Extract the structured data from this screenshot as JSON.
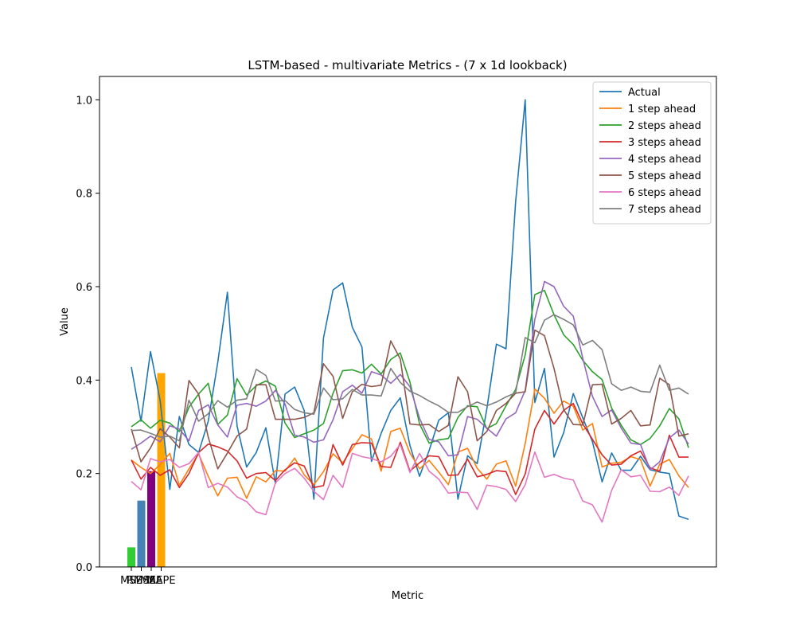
{
  "chart_data": {
    "type": "line",
    "title": "LSTM-based - multivariate Metrics - (7 x 1d lookback)",
    "xlabel": "Metric",
    "ylabel": "Value",
    "ylim": [
      0,
      1.05
    ],
    "y_ticks": [
      "0.0",
      "0.2",
      "0.4",
      "0.6",
      "0.8",
      "1.0"
    ],
    "legend_position": "upper right",
    "bars": {
      "categories": [
        "MSE",
        "RMSE",
        "MAE",
        "MAPE"
      ],
      "values": [
        0.042,
        0.142,
        0.205,
        0.415
      ],
      "colors": [
        "#32cd32",
        "#4682b4",
        "#800080",
        "#ffa500"
      ]
    },
    "series": [
      {
        "name": "Actual",
        "color": "#1f77b4",
        "values": [
          0.428,
          0.312,
          0.461,
          0.356,
          0.166,
          0.322,
          0.262,
          0.245,
          0.312,
          0.438,
          0.588,
          0.302,
          0.214,
          0.245,
          0.298,
          0.178,
          0.37,
          0.385,
          0.335,
          0.145,
          0.49,
          0.593,
          0.608,
          0.513,
          0.471,
          0.226,
          0.286,
          0.335,
          0.362,
          0.26,
          0.194,
          0.249,
          0.314,
          0.33,
          0.145,
          0.238,
          0.221,
          0.338,
          0.477,
          0.467,
          0.782,
          1.0,
          0.352,
          0.425,
          0.235,
          0.287,
          0.371,
          0.319,
          0.268,
          0.182,
          0.244,
          0.207,
          0.207,
          0.237,
          0.208,
          0.203,
          0.2,
          0.109,
          0.102
        ]
      },
      {
        "name": "1 step ahead",
        "color": "#ff7f0e",
        "values": [
          0.229,
          0.213,
          0.2,
          0.219,
          0.243,
          0.175,
          0.21,
          0.242,
          0.194,
          0.152,
          0.19,
          0.192,
          0.147,
          0.193,
          0.182,
          0.206,
          0.205,
          0.233,
          0.197,
          0.176,
          0.204,
          0.242,
          0.223,
          0.253,
          0.283,
          0.274,
          0.205,
          0.29,
          0.297,
          0.244,
          0.21,
          0.228,
          0.203,
          0.176,
          0.246,
          0.254,
          0.211,
          0.188,
          0.22,
          0.227,
          0.173,
          0.264,
          0.381,
          0.361,
          0.329,
          0.355,
          0.344,
          0.293,
          0.307,
          0.214,
          0.222,
          0.224,
          0.236,
          0.23,
          0.173,
          0.22,
          0.23,
          0.195,
          0.17
        ]
      },
      {
        "name": "2 steps ahead",
        "color": "#2ca02c",
        "values": [
          0.3,
          0.315,
          0.297,
          0.314,
          0.308,
          0.29,
          0.342,
          0.37,
          0.393,
          0.305,
          0.325,
          0.403,
          0.368,
          0.388,
          0.398,
          0.387,
          0.308,
          0.277,
          0.285,
          0.293,
          0.307,
          0.372,
          0.42,
          0.422,
          0.415,
          0.434,
          0.413,
          0.444,
          0.458,
          0.396,
          0.306,
          0.265,
          0.272,
          0.275,
          0.32,
          0.345,
          0.343,
          0.296,
          0.307,
          0.345,
          0.38,
          0.454,
          0.583,
          0.592,
          0.54,
          0.497,
          0.476,
          0.442,
          0.418,
          0.401,
          0.34,
          0.303,
          0.272,
          0.262,
          0.275,
          0.302,
          0.339,
          0.317,
          0.255
        ]
      },
      {
        "name": "3 steps ahead",
        "color": "#d62728",
        "values": [
          0.229,
          0.188,
          0.213,
          0.196,
          0.208,
          0.17,
          0.2,
          0.245,
          0.263,
          0.257,
          0.248,
          0.227,
          0.19,
          0.2,
          0.202,
          0.185,
          0.208,
          0.223,
          0.216,
          0.17,
          0.174,
          0.262,
          0.218,
          0.262,
          0.266,
          0.265,
          0.215,
          0.213,
          0.267,
          0.205,
          0.223,
          0.238,
          0.236,
          0.196,
          0.197,
          0.231,
          0.193,
          0.198,
          0.206,
          0.204,
          0.155,
          0.199,
          0.295,
          0.335,
          0.306,
          0.335,
          0.35,
          0.306,
          0.273,
          0.24,
          0.218,
          0.22,
          0.238,
          0.248,
          0.212,
          0.205,
          0.282,
          0.235,
          0.235
        ]
      },
      {
        "name": "4 steps ahead",
        "color": "#9467bd",
        "values": [
          0.252,
          0.265,
          0.28,
          0.268,
          0.302,
          0.295,
          0.27,
          0.335,
          0.347,
          0.304,
          0.278,
          0.346,
          0.35,
          0.344,
          0.355,
          0.378,
          0.349,
          0.282,
          0.278,
          0.267,
          0.272,
          0.315,
          0.375,
          0.389,
          0.372,
          0.418,
          0.411,
          0.393,
          0.412,
          0.386,
          0.318,
          0.273,
          0.268,
          0.238,
          0.24,
          0.322,
          0.316,
          0.297,
          0.28,
          0.317,
          0.33,
          0.378,
          0.53,
          0.611,
          0.6,
          0.558,
          0.537,
          0.446,
          0.365,
          0.322,
          0.336,
          0.297,
          0.265,
          0.262,
          0.208,
          0.225,
          0.276,
          0.293,
          0.263
        ]
      },
      {
        "name": "5 steps ahead",
        "color": "#8c564b",
        "values": [
          0.295,
          0.225,
          0.255,
          0.296,
          0.278,
          0.255,
          0.399,
          0.37,
          0.278,
          0.21,
          0.244,
          0.28,
          0.295,
          0.39,
          0.39,
          0.316,
          0.316,
          0.316,
          0.32,
          0.33,
          0.435,
          0.408,
          0.318,
          0.375,
          0.391,
          0.386,
          0.389,
          0.484,
          0.445,
          0.306,
          0.304,
          0.305,
          0.29,
          0.303,
          0.407,
          0.375,
          0.27,
          0.29,
          0.335,
          0.35,
          0.372,
          0.375,
          0.507,
          0.495,
          0.425,
          0.337,
          0.305,
          0.304,
          0.39,
          0.391,
          0.306,
          0.318,
          0.335,
          0.302,
          0.304,
          0.404,
          0.39,
          0.28,
          0.285
        ]
      },
      {
        "name": "6 steps ahead",
        "color": "#e377c2",
        "values": [
          0.183,
          0.165,
          0.232,
          0.225,
          0.23,
          0.213,
          0.221,
          0.245,
          0.17,
          0.179,
          0.171,
          0.15,
          0.14,
          0.118,
          0.112,
          0.18,
          0.2,
          0.211,
          0.19,
          0.162,
          0.144,
          0.196,
          0.17,
          0.243,
          0.236,
          0.232,
          0.225,
          0.237,
          0.262,
          0.202,
          0.243,
          0.205,
          0.188,
          0.158,
          0.16,
          0.159,
          0.123,
          0.175,
          0.172,
          0.166,
          0.14,
          0.176,
          0.246,
          0.192,
          0.198,
          0.19,
          0.186,
          0.141,
          0.133,
          0.096,
          0.164,
          0.208,
          0.193,
          0.196,
          0.162,
          0.161,
          0.171,
          0.153,
          0.195
        ]
      },
      {
        "name": "7 steps ahead",
        "color": "#7f7f7f",
        "values": [
          0.292,
          0.293,
          0.286,
          0.278,
          0.28,
          0.27,
          0.357,
          0.312,
          0.328,
          0.356,
          0.342,
          0.357,
          0.36,
          0.423,
          0.41,
          0.355,
          0.356,
          0.337,
          0.33,
          0.327,
          0.383,
          0.358,
          0.36,
          0.38,
          0.368,
          0.368,
          0.366,
          0.425,
          0.395,
          0.376,
          0.367,
          0.355,
          0.345,
          0.331,
          0.331,
          0.343,
          0.353,
          0.345,
          0.353,
          0.364,
          0.373,
          0.491,
          0.48,
          0.528,
          0.54,
          0.53,
          0.518,
          0.475,
          0.485,
          0.465,
          0.392,
          0.378,
          0.385,
          0.376,
          0.374,
          0.432,
          0.378,
          0.383,
          0.37
        ]
      }
    ]
  }
}
